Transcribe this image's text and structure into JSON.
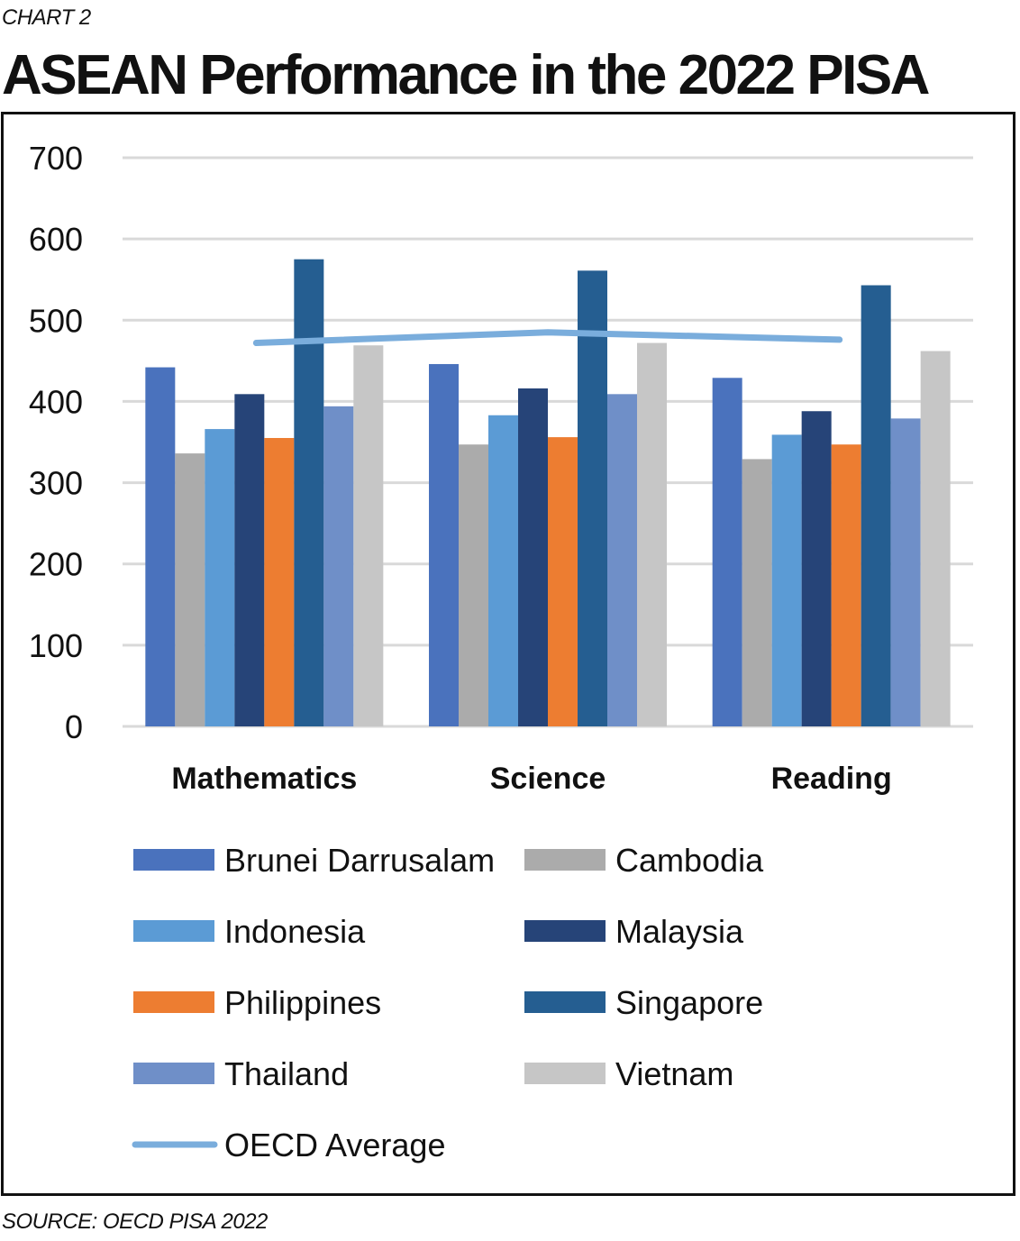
{
  "header": {
    "chart_label": "CHART 2",
    "title": "ASEAN Performance in the 2022 PISA"
  },
  "footer": {
    "source": "SOURCE: OECD PISA 2022"
  },
  "colors": {
    "Brunei Darrusalam": "#4a72bd",
    "Cambodia": "#ababab",
    "Indonesia": "#5b9bd5",
    "Malaysia": "#264478",
    "Philippines": "#ed7d31",
    "Singapore": "#255e91",
    "Thailand": "#6f8fc8",
    "Vietnam": "#c6c6c6",
    "OECD Average": "#7aaddc",
    "gridline": "#d9d9d9"
  },
  "chart_data": {
    "type": "bar",
    "title": "ASEAN Performance in the 2022 PISA",
    "xlabel": "",
    "ylabel": "",
    "ylim": [
      0,
      700
    ],
    "yticks": [
      0,
      100,
      200,
      300,
      400,
      500,
      600,
      700
    ],
    "grid": true,
    "legend_position": "bottom",
    "categories": [
      "Mathematics",
      "Science",
      "Reading"
    ],
    "series": [
      {
        "name": "Brunei Darrusalam",
        "values": [
          442,
          446,
          429
        ]
      },
      {
        "name": "Cambodia",
        "values": [
          336,
          347,
          329
        ]
      },
      {
        "name": "Indonesia",
        "values": [
          366,
          383,
          359
        ]
      },
      {
        "name": "Malaysia",
        "values": [
          409,
          416,
          388
        ]
      },
      {
        "name": "Philippines",
        "values": [
          355,
          356,
          347
        ]
      },
      {
        "name": "Singapore",
        "values": [
          575,
          561,
          543
        ]
      },
      {
        "name": "Thailand",
        "values": [
          394,
          409,
          379
        ]
      },
      {
        "name": "Vietnam",
        "values": [
          469,
          472,
          462
        ]
      }
    ],
    "line_series": {
      "name": "OECD Average",
      "values": [
        472,
        485,
        476
      ]
    }
  }
}
